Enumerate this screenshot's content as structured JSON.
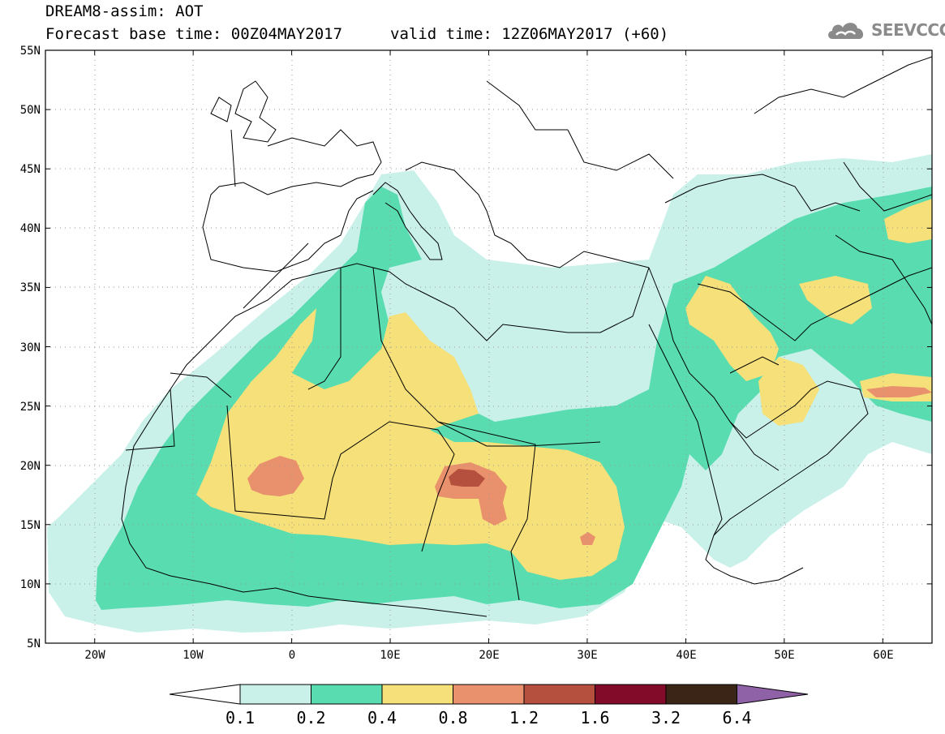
{
  "header": {
    "title": "DREAM8-assim: AOT",
    "base_time": "Forecast base time: 00Z04MAY2017",
    "valid_time": "valid time: 12Z06MAY2017 (+60)",
    "logo_text": "SEEVCCC",
    "logo_icon": "cloud-icon"
  },
  "map": {
    "projection": "lat-lon",
    "lon_range": [
      -25,
      65
    ],
    "lat_range": [
      5,
      55
    ],
    "lat_ticks": [
      "55N",
      "50N",
      "45N",
      "40N",
      "35N",
      "30N",
      "25N",
      "20N",
      "15N",
      "10N",
      "5N"
    ],
    "lon_ticks": [
      "20W",
      "10W",
      "0",
      "10E",
      "20E",
      "30E",
      "40E",
      "50E",
      "60E"
    ],
    "grid": "dotted",
    "variable": "AOT"
  },
  "colorbar": {
    "levels": [
      "0.1",
      "0.2",
      "0.4",
      "0.8",
      "1.2",
      "1.6",
      "3.2",
      "6.4"
    ],
    "colors": {
      "under": "#ffffff",
      "c1": "#c9f1ea",
      "c2": "#59dcb0",
      "c3": "#f5e07a",
      "c4": "#e9906c",
      "c5": "#b5503f",
      "c6": "#830b2a",
      "c7": "#3b2516",
      "over": "#8f62a8"
    }
  }
}
